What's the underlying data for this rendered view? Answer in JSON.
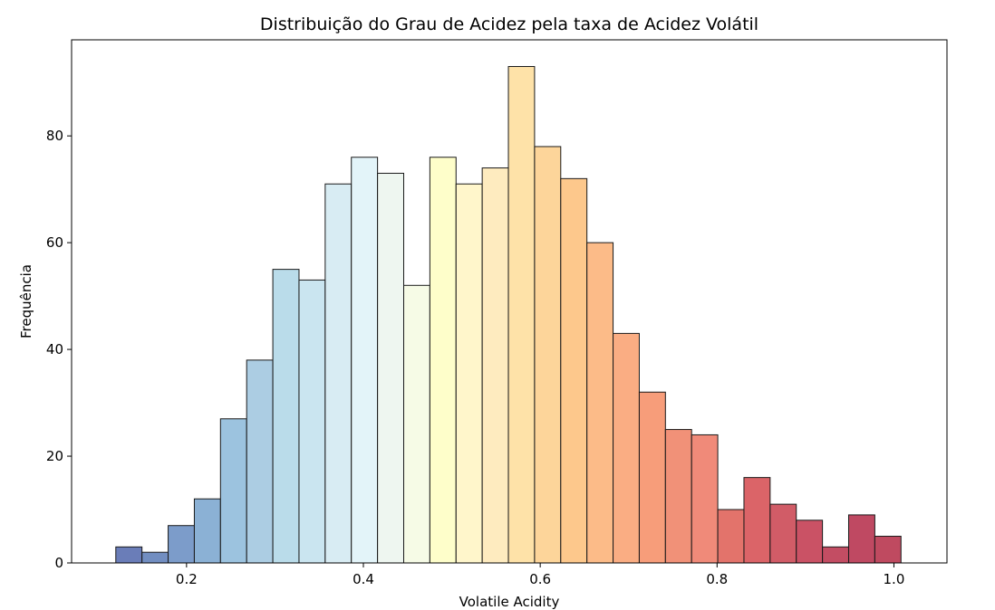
{
  "chart_data": {
    "type": "bar",
    "title": "Distribuição do Grau de Acidez pela taxa de Acidez Volátil",
    "xlabel": "Volatile Acidity",
    "ylabel": "Frequência",
    "xlim": [
      0.07,
      1.06
    ],
    "ylim": [
      0,
      98
    ],
    "xticks": [
      0.2,
      0.4,
      0.6,
      0.8,
      1.0
    ],
    "xtick_labels": [
      "0.2",
      "0.4",
      "0.6",
      "0.8",
      "1.0"
    ],
    "yticks": [
      0,
      20,
      40,
      60,
      80
    ],
    "ytick_labels": [
      "0",
      "20",
      "40",
      "60",
      "80"
    ],
    "grid": false,
    "colormap": "RdYlBu_r",
    "bin_start": 0.12,
    "bin_width": 0.0296,
    "values": [
      3,
      2,
      7,
      12,
      27,
      38,
      55,
      53,
      71,
      76,
      73,
      52,
      76,
      71,
      74,
      93,
      78,
      72,
      60,
      43,
      32,
      25,
      24,
      10,
      16,
      11,
      8,
      3,
      9,
      5
    ],
    "colors": [
      "#5a6fb0",
      "#6382ba",
      "#6e91c4",
      "#7ea9d0",
      "#91bcdb",
      "#a3c8e0",
      "#b3d8e8",
      "#c4e2ee",
      "#d4eaf2",
      "#e0f3f8",
      "#ecf5ee",
      "#f5fbe3",
      "#fefec4",
      "#fff5c5",
      "#fee9b8",
      "#fedf9f",
      "#fdd08f",
      "#fdc27f",
      "#fcb47b",
      "#faa475",
      "#f6926b",
      "#f08569",
      "#ee7d6a",
      "#e0645b",
      "#d75358",
      "#cc4a56",
      "#c43f54",
      "#bd3a52",
      "#b83551",
      "#b8364f"
    ]
  }
}
